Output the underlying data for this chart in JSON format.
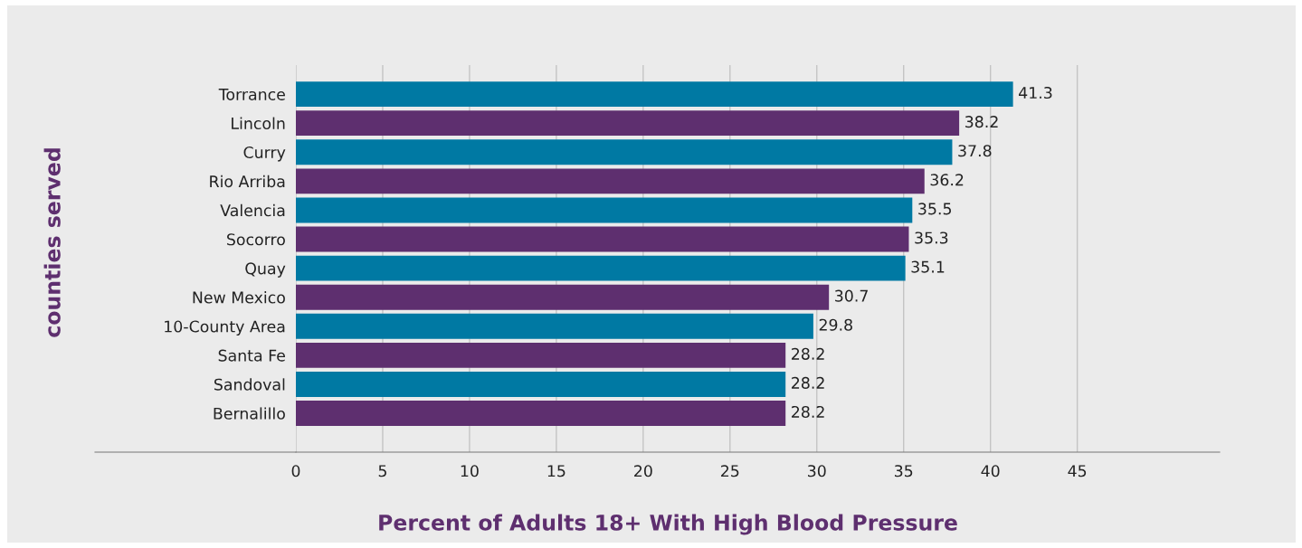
{
  "chart_data": {
    "type": "bar",
    "orientation": "horizontal",
    "categories": [
      "Torrance",
      "Lincoln",
      "Curry",
      "Rio Arriba",
      "Valencia",
      "Socorro",
      "Quay",
      "New Mexico",
      "10-County Area",
      "Santa Fe",
      "Sandoval",
      "Bernalillo"
    ],
    "values": [
      41.3,
      38.2,
      37.8,
      36.2,
      35.5,
      35.3,
      35.1,
      30.7,
      29.8,
      28.2,
      28.2,
      28.2
    ],
    "colors": [
      "#0079a3",
      "#5e2f6f",
      "#0079a3",
      "#5e2f6f",
      "#0079a3",
      "#5e2f6f",
      "#0079a3",
      "#5e2f6f",
      "#0079a3",
      "#5e2f6f",
      "#0079a3",
      "#5e2f6f"
    ],
    "xlabel": "Percent of Adults 18+ With High Blood Pressure",
    "ylabel": "counties served",
    "xlim": [
      0,
      53.2
    ],
    "xticks": [
      0,
      5,
      10,
      15,
      20,
      25,
      30,
      35,
      40,
      45
    ],
    "grid": "x",
    "data_labels": true
  }
}
